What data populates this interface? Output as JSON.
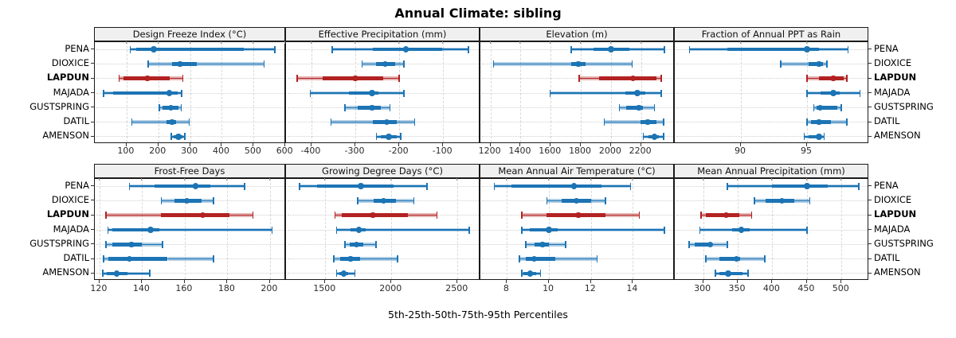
{
  "chart_data": {
    "type": "scatter",
    "subtype": "trellis-percentile-interval-dotplot",
    "layout": "2 rows x 4 columns, shared site rows",
    "title": "Annual Climate: sibling",
    "caption": "5th-25th-50th-75th-95th Percentiles",
    "legend_position": "none",
    "grid": "vertical dashed gridlines at x ticks; dotted horizontal row guides",
    "sites": [
      "PENA",
      "DIOXICE",
      "LAPDUN",
      "MAJADA",
      "GUSTSPRING",
      "DATIL",
      "AMENSON"
    ],
    "highlighted_site": "LAPDUN",
    "percentile_order": [
      "p5",
      "p25",
      "p50",
      "p75",
      "p95"
    ],
    "colors": {
      "series": "#1c74b4",
      "highlight": "#b22222",
      "strip_bg": "#f0f0f0",
      "gridline": "#d8d8d8",
      "border": "#1a1a1a"
    },
    "panels": [
      {
        "label": "Design Freeze Index (°C)",
        "xlim": [
          0,
          602
        ],
        "ticks": [
          100,
          200,
          300,
          400,
          500,
          600
        ],
        "values": {
          "PENA": [
            112,
            130,
            185,
            470,
            567
          ],
          "DIOXICE": [
            168,
            243,
            268,
            322,
            533
          ],
          "LAPDUN": [
            76,
            90,
            165,
            235,
            277
          ],
          "MAJADA": [
            28,
            58,
            235,
            262,
            273
          ],
          "GUSTSPRING": [
            203,
            212,
            239,
            263,
            272
          ],
          "DATIL": [
            117,
            225,
            243,
            255,
            297
          ],
          "AMENSON": [
            241,
            249,
            264,
            276,
            283
          ]
        }
      },
      {
        "label": "Effective Precipitation (mm)",
        "xlim": [
          -458,
          -15
        ],
        "ticks": [
          -400,
          -300,
          -200,
          -100
        ],
        "values": {
          "PENA": [
            -353,
            -260,
            -185,
            -103,
            -42
          ],
          "DIOXICE": [
            -285,
            -252,
            -232,
            -210,
            -189
          ],
          "LAPDUN": [
            -433,
            -375,
            -300,
            -236,
            -200
          ],
          "MAJADA": [
            -403,
            -315,
            -262,
            -248,
            -189
          ],
          "GUSTSPRING": [
            -324,
            -294,
            -262,
            -242,
            -221
          ],
          "DATIL": [
            -355,
            -260,
            -228,
            -206,
            -165
          ],
          "AMENSON": [
            -252,
            -242,
            -224,
            -206,
            -197
          ]
        }
      },
      {
        "label": "Elevation (m)",
        "xlim": [
          1133,
          2424
        ],
        "ticks": [
          1200,
          1400,
          1600,
          1800,
          2000,
          2200
        ],
        "values": {
          "PENA": [
            1735,
            1885,
            2000,
            2125,
            2355
          ],
          "DIOXICE": [
            1220,
            1735,
            1785,
            1830,
            2140
          ],
          "LAPDUN": [
            1790,
            1920,
            2145,
            2300,
            2335
          ],
          "MAJADA": [
            1595,
            2095,
            2175,
            2230,
            2335
          ],
          "GUSTSPRING": [
            2055,
            2100,
            2185,
            2210,
            2290
          ],
          "DATIL": [
            1955,
            2195,
            2245,
            2300,
            2350
          ],
          "AMENSON": [
            2215,
            2250,
            2290,
            2320,
            2350
          ]
        }
      },
      {
        "label": "Fraction of Annual PPT as Rain",
        "xlim": [
          85,
          99.7
        ],
        "ticks": [
          90,
          95
        ],
        "values": {
          "PENA": [
            86.1,
            89.0,
            95.0,
            95.9,
            98.1
          ],
          "DIOXICE": [
            93.0,
            95.1,
            95.9,
            96.2,
            96.5
          ],
          "LAPDUN": [
            95.0,
            95.9,
            97.0,
            97.8,
            98.0
          ],
          "MAJADA": [
            95.0,
            96.0,
            97.0,
            97.5,
            99.0
          ],
          "GUSTSPRING": [
            95.5,
            95.7,
            96.0,
            97.3,
            97.6
          ],
          "DATIL": [
            95.0,
            95.3,
            95.9,
            96.8,
            98.0
          ],
          "AMENSON": [
            94.8,
            95.1,
            95.9,
            96.1,
            96.3
          ]
        }
      },
      {
        "label": "Frost-Free Days",
        "xlim": [
          117.8,
          207.5
        ],
        "ticks": [
          120,
          140,
          160,
          180,
          200
        ],
        "values": {
          "PENA": [
            134,
            146,
            165,
            172,
            188
          ],
          "DIOXICE": [
            149,
            155,
            161,
            168,
            173.5
          ],
          "LAPDUN": [
            123,
            149,
            168.5,
            181,
            192
          ],
          "MAJADA": [
            124,
            126,
            144,
            148,
            201
          ],
          "GUSTSPRING": [
            123,
            126,
            135,
            140,
            149.5
          ],
          "DATIL": [
            122,
            124,
            134,
            152,
            173.5
          ],
          "AMENSON": [
            121.5,
            123.5,
            128,
            133,
            143.5
          ]
        }
      },
      {
        "label": "Growing Degree Days (°C)",
        "xlim": [
          1203,
          2673
        ],
        "ticks": [
          1500,
          2000,
          2500
        ],
        "values": {
          "PENA": [
            1305,
            1435,
            1770,
            2015,
            2270
          ],
          "DIOXICE": [
            1745,
            1865,
            1940,
            2035,
            2170
          ],
          "LAPDUN": [
            1575,
            1625,
            1860,
            2125,
            2345
          ],
          "MAJADA": [
            1585,
            1690,
            1755,
            1805,
            2590
          ],
          "GUSTSPRING": [
            1650,
            1685,
            1735,
            1785,
            1885
          ],
          "DATIL": [
            1565,
            1615,
            1690,
            1765,
            2045
          ],
          "AMENSON": [
            1585,
            1605,
            1640,
            1675,
            1725
          ]
        }
      },
      {
        "label": "Mean Annual Air Temperature (°C)",
        "xlim": [
          6.73,
          16.0
        ],
        "ticks": [
          8,
          10,
          12,
          14
        ],
        "values": {
          "PENA": [
            7.4,
            8.2,
            11.2,
            12.5,
            13.9
          ],
          "DIOXICE": [
            9.9,
            10.6,
            11.3,
            12.0,
            12.7
          ],
          "LAPDUN": [
            8.7,
            9.9,
            11.4,
            12.7,
            14.3
          ],
          "MAJADA": [
            8.7,
            9.1,
            10.0,
            10.4,
            15.5
          ],
          "GUSTSPRING": [
            8.9,
            9.3,
            9.7,
            10.0,
            10.8
          ],
          "DATIL": [
            8.6,
            8.9,
            9.3,
            10.3,
            12.3
          ],
          "AMENSON": [
            8.7,
            8.8,
            9.1,
            9.4,
            9.6
          ]
        }
      },
      {
        "label": "Mean Annual Precipitation (mm)",
        "xlim": [
          259,
          540
        ],
        "ticks": [
          300,
          350,
          400,
          450,
          500
        ],
        "values": {
          "PENA": [
            335,
            400,
            450,
            480,
            525
          ],
          "DIOXICE": [
            374,
            390,
            414,
            432,
            454
          ],
          "LAPDUN": [
            297,
            304,
            333,
            352,
            370
          ],
          "MAJADA": [
            295,
            342,
            355,
            367,
            450
          ],
          "GUSTSPRING": [
            280,
            288,
            310,
            313,
            335
          ],
          "DATIL": [
            304,
            323,
            348,
            354,
            389
          ],
          "AMENSON": [
            318,
            323,
            336,
            357,
            365
          ]
        }
      }
    ]
  }
}
